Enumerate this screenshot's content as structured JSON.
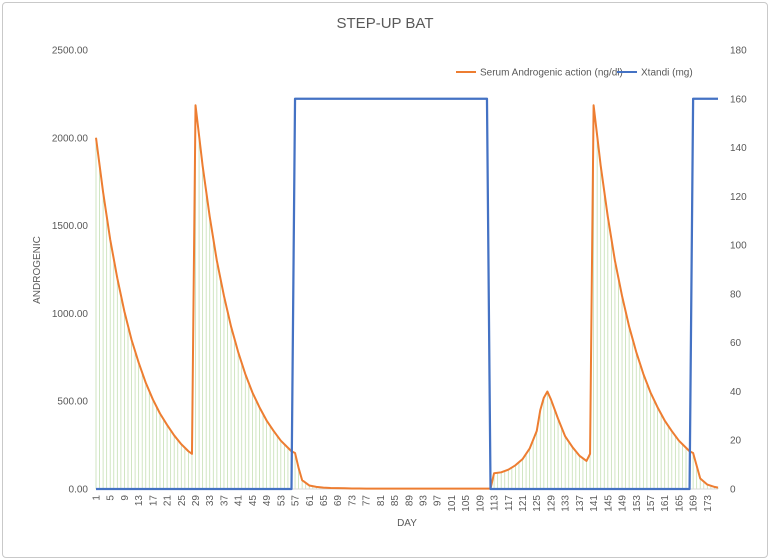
{
  "chart_data": {
    "type": "line",
    "title": "STEP-UP BAT",
    "xlabel": "DAY",
    "ylabel": "ANDROGENIC",
    "ylabel_right": "",
    "ylim": [
      0,
      2500
    ],
    "ylim_right": [
      0,
      180
    ],
    "xlim": [
      1,
      176
    ],
    "y_ticks": [
      "0.00",
      "500.00",
      "1000.00",
      "1500.00",
      "2000.00",
      "2500.00"
    ],
    "y_ticks_right": [
      "0",
      "20",
      "40",
      "60",
      "80",
      "100",
      "120",
      "140",
      "160",
      "180"
    ],
    "x_ticks": [
      1,
      5,
      9,
      13,
      17,
      21,
      25,
      29,
      33,
      37,
      41,
      45,
      49,
      53,
      57,
      61,
      65,
      69,
      73,
      77,
      81,
      85,
      89,
      93,
      97,
      101,
      105,
      109,
      113,
      117,
      121,
      125,
      129,
      133,
      137,
      141,
      145,
      149,
      153,
      157,
      161,
      165,
      169,
      173
    ],
    "legend_position": "top-right",
    "grid": false,
    "series": [
      {
        "name": "Serum Androgenic action (ng/dl)",
        "axis": "left",
        "color": "#ED7D31",
        "x": [
          1,
          3,
          5,
          7,
          9,
          11,
          13,
          15,
          17,
          19,
          21,
          23,
          25,
          27,
          28,
          29,
          31,
          33,
          35,
          37,
          39,
          41,
          43,
          45,
          47,
          49,
          51,
          53,
          55,
          56,
          57,
          58,
          59,
          61,
          63,
          65,
          67,
          69,
          71,
          73,
          75,
          77,
          79,
          81,
          83,
          85,
          87,
          89,
          91,
          93,
          95,
          97,
          99,
          101,
          103,
          105,
          107,
          109,
          111,
          112,
          113,
          115,
          117,
          119,
          121,
          123,
          125,
          126,
          127,
          128,
          129,
          131,
          133,
          135,
          137,
          139,
          140,
          141,
          143,
          145,
          147,
          149,
          151,
          153,
          155,
          157,
          159,
          161,
          163,
          165,
          167,
          168,
          169,
          171,
          173,
          175,
          176
        ],
        "y": [
          2000,
          1690,
          1420,
          1200,
          1010,
          850,
          720,
          605,
          510,
          430,
          365,
          305,
          255,
          215,
          200,
          2185,
          1840,
          1550,
          1300,
          1100,
          925,
          780,
          655,
          550,
          465,
          390,
          330,
          275,
          235,
          215,
          205,
          120,
          50,
          20,
          12,
          8,
          6,
          5,
          4,
          3,
          3,
          2,
          2,
          2,
          2,
          2,
          2,
          2,
          2,
          2,
          2,
          2,
          2,
          2,
          2,
          2,
          2,
          2,
          2,
          2,
          90,
          95,
          110,
          135,
          170,
          230,
          330,
          450,
          520,
          555,
          510,
          400,
          300,
          240,
          190,
          160,
          200,
          2185,
          1840,
          1550,
          1300,
          1100,
          925,
          780,
          655,
          550,
          465,
          390,
          330,
          275,
          235,
          215,
          205,
          60,
          25,
          12,
          8
        ]
      },
      {
        "name": "Xtandi (mg)",
        "axis": "right",
        "color": "#4472C4",
        "x": [
          1,
          56,
          57,
          111,
          112,
          168,
          169,
          176
        ],
        "y": [
          0,
          0,
          160,
          160,
          0,
          0,
          160,
          160
        ]
      }
    ]
  }
}
